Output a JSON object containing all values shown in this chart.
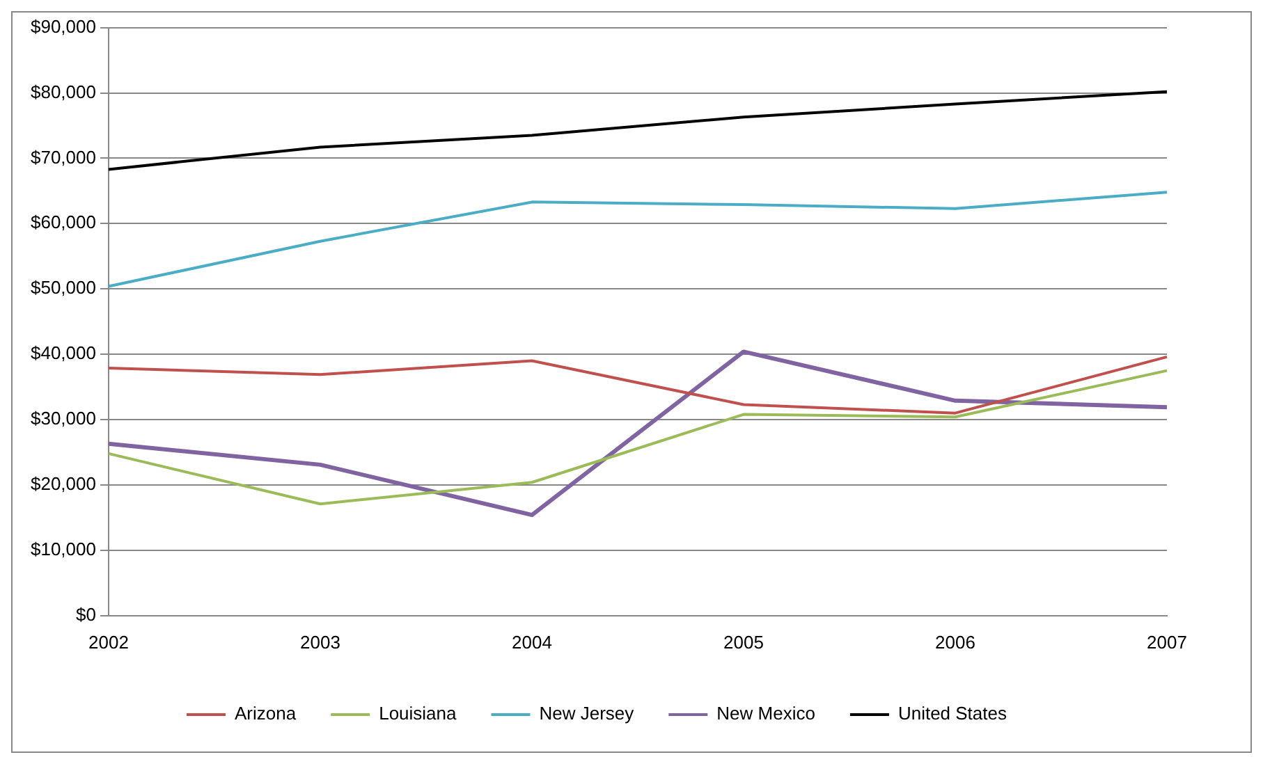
{
  "chart_data": {
    "type": "line",
    "categories": [
      "2002",
      "2003",
      "2004",
      "2005",
      "2006",
      "2007"
    ],
    "series": [
      {
        "name": "Arizona",
        "color": "#c0504d",
        "values": [
          37900,
          36900,
          39000,
          32300,
          31000,
          39600
        ]
      },
      {
        "name": "Louisiana",
        "color": "#9bbb59",
        "values": [
          24800,
          17100,
          20400,
          30800,
          30400,
          37500
        ]
      },
      {
        "name": "New Jersey",
        "color": "#4bacc6",
        "values": [
          50400,
          57300,
          63300,
          62900,
          62300,
          64800
        ]
      },
      {
        "name": "New Mexico",
        "color": "#8064a2",
        "values": [
          26300,
          23100,
          15400,
          40400,
          32900,
          31900
        ]
      },
      {
        "name": "United States",
        "color": "#000000",
        "values": [
          68300,
          71700,
          73500,
          76300,
          78300,
          80200
        ]
      }
    ],
    "ylim": [
      0,
      90000
    ],
    "yticks": [
      {
        "value": 0,
        "label": "$0"
      },
      {
        "value": 10000,
        "label": "$10,000"
      },
      {
        "value": 20000,
        "label": "$20,000"
      },
      {
        "value": 30000,
        "label": "$30,000"
      },
      {
        "value": 40000,
        "label": "$40,000"
      },
      {
        "value": 50000,
        "label": "$50,000"
      },
      {
        "value": 60000,
        "label": "$60,000"
      },
      {
        "value": 70000,
        "label": "$70,000"
      },
      {
        "value": 80000,
        "label": "$80,000"
      },
      {
        "value": 90000,
        "label": "$90,000"
      }
    ],
    "grid": "y",
    "legend": "bottom",
    "marker": "none",
    "line_style": "solid"
  }
}
